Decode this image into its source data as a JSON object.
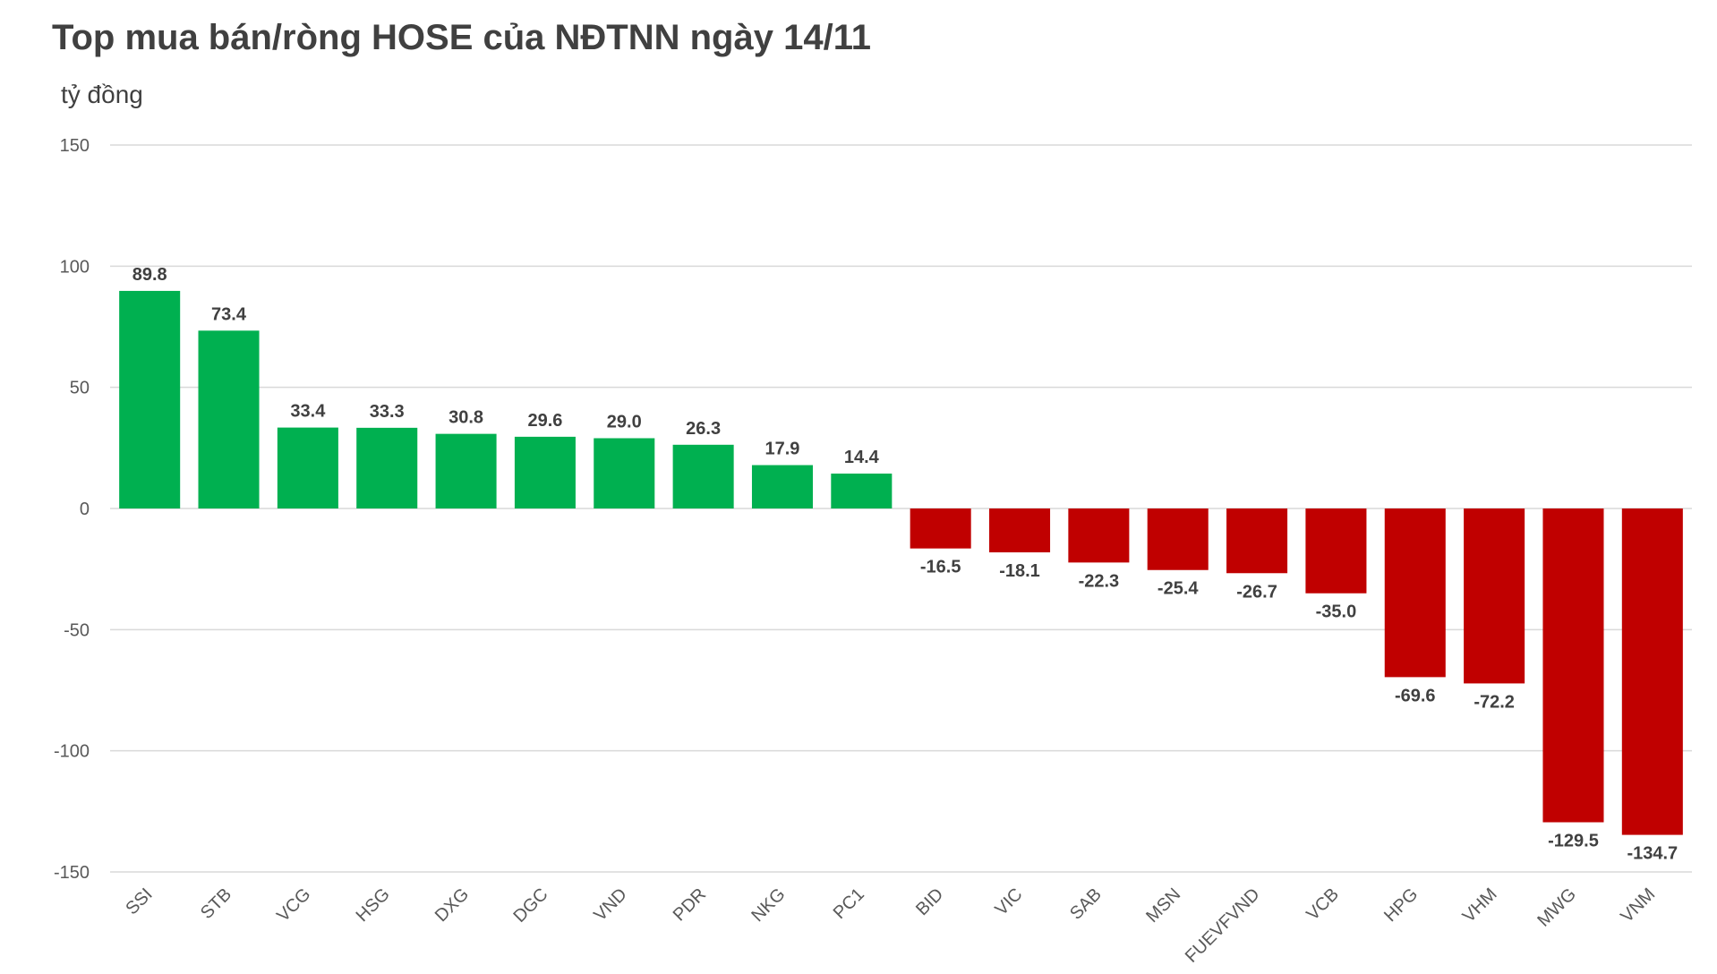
{
  "chart_data": {
    "type": "bar",
    "title": "Top mua bán/ròng HOSE của NĐTNN ngày 14/11",
    "ylabel": "tỷ đồng",
    "xlabel": "",
    "ylim": [
      -150,
      150
    ],
    "yticks": [
      150,
      100,
      50,
      0,
      -50,
      -100,
      -150
    ],
    "grid": true,
    "categories": [
      "SSI",
      "STB",
      "VCG",
      "HSG",
      "DXG",
      "DGC",
      "VND",
      "PDR",
      "NKG",
      "PC1",
      "BID",
      "VIC",
      "SAB",
      "MSN",
      "FUEVFVND",
      "VCB",
      "HPG",
      "VHM",
      "MWG",
      "VNM"
    ],
    "values": [
      89.8,
      73.4,
      33.4,
      33.3,
      30.8,
      29.6,
      29.0,
      26.3,
      17.9,
      14.4,
      -16.5,
      -18.1,
      -22.3,
      -25.4,
      -26.7,
      -35.0,
      -69.6,
      -72.2,
      -129.5,
      -134.7
    ],
    "value_labels": [
      "89.8",
      "73.4",
      "33.4",
      "33.3",
      "30.8",
      "29.6",
      "29.0",
      "26.3",
      "17.9",
      "14.4",
      "-16.5",
      "-18.1",
      "-22.3",
      "-25.4",
      "-26.7",
      "-35.0",
      "-69.6",
      "-72.2",
      "-129.5",
      "-134.7"
    ],
    "colors": {
      "positive": "#00b050",
      "negative": "#c00000",
      "grid": "#d9d9d9",
      "text": "#404040"
    }
  }
}
